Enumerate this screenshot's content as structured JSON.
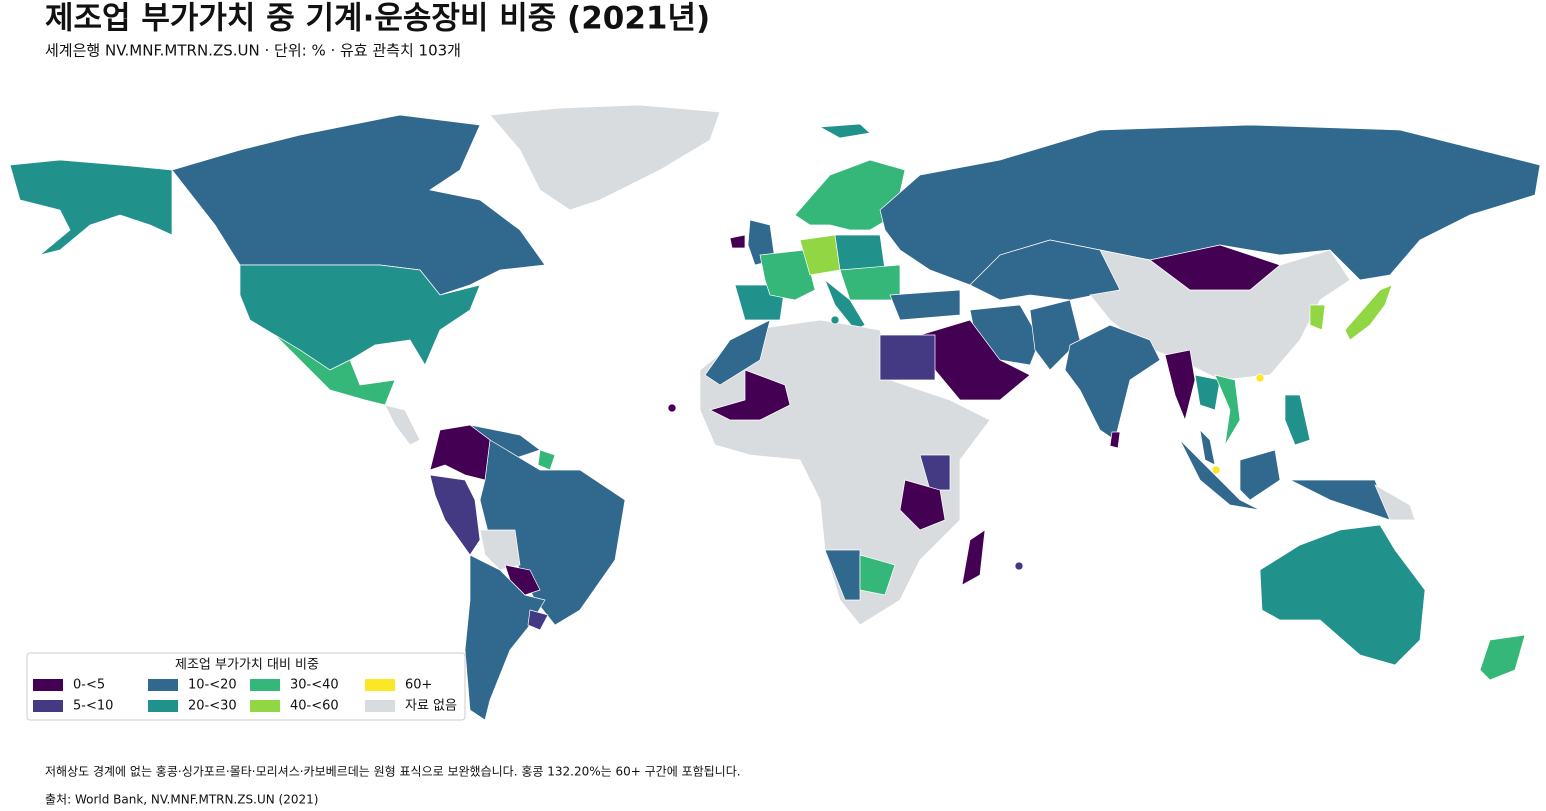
{
  "header": {
    "title": "제조업 부가가치 중 기계·운송장비 비중 (2021년)",
    "subtitle": "세계은행 NV.MNF.MTRN.ZS.UN · 단위: % · 유효 관측치 103개"
  },
  "legend": {
    "title": "제조업 부가가치 대비 비중",
    "items": [
      {
        "label": "0-<5",
        "color": "#440154"
      },
      {
        "label": "5-<10",
        "color": "#443983"
      },
      {
        "label": "10-<20",
        "color": "#31688e"
      },
      {
        "label": "20-<30",
        "color": "#21918c"
      },
      {
        "label": "30-<40",
        "color": "#35b779"
      },
      {
        "label": "40-<60",
        "color": "#90d743"
      },
      {
        "label": "60+",
        "color": "#fde725"
      },
      {
        "label": "자료 없음",
        "color": "#d9dcdf"
      }
    ]
  },
  "footer": {
    "note": "저해상도 경계에 없는 홍콩·싱가포르·몰타·모리셔스·카보베르데는 원형 표식으로 보완했습니다. 홍콩 132.20%는 60+ 구간에 포함됩니다.",
    "source": "출처: World Bank, NV.MNF.MTRN.ZS.UN (2021)"
  }
}
